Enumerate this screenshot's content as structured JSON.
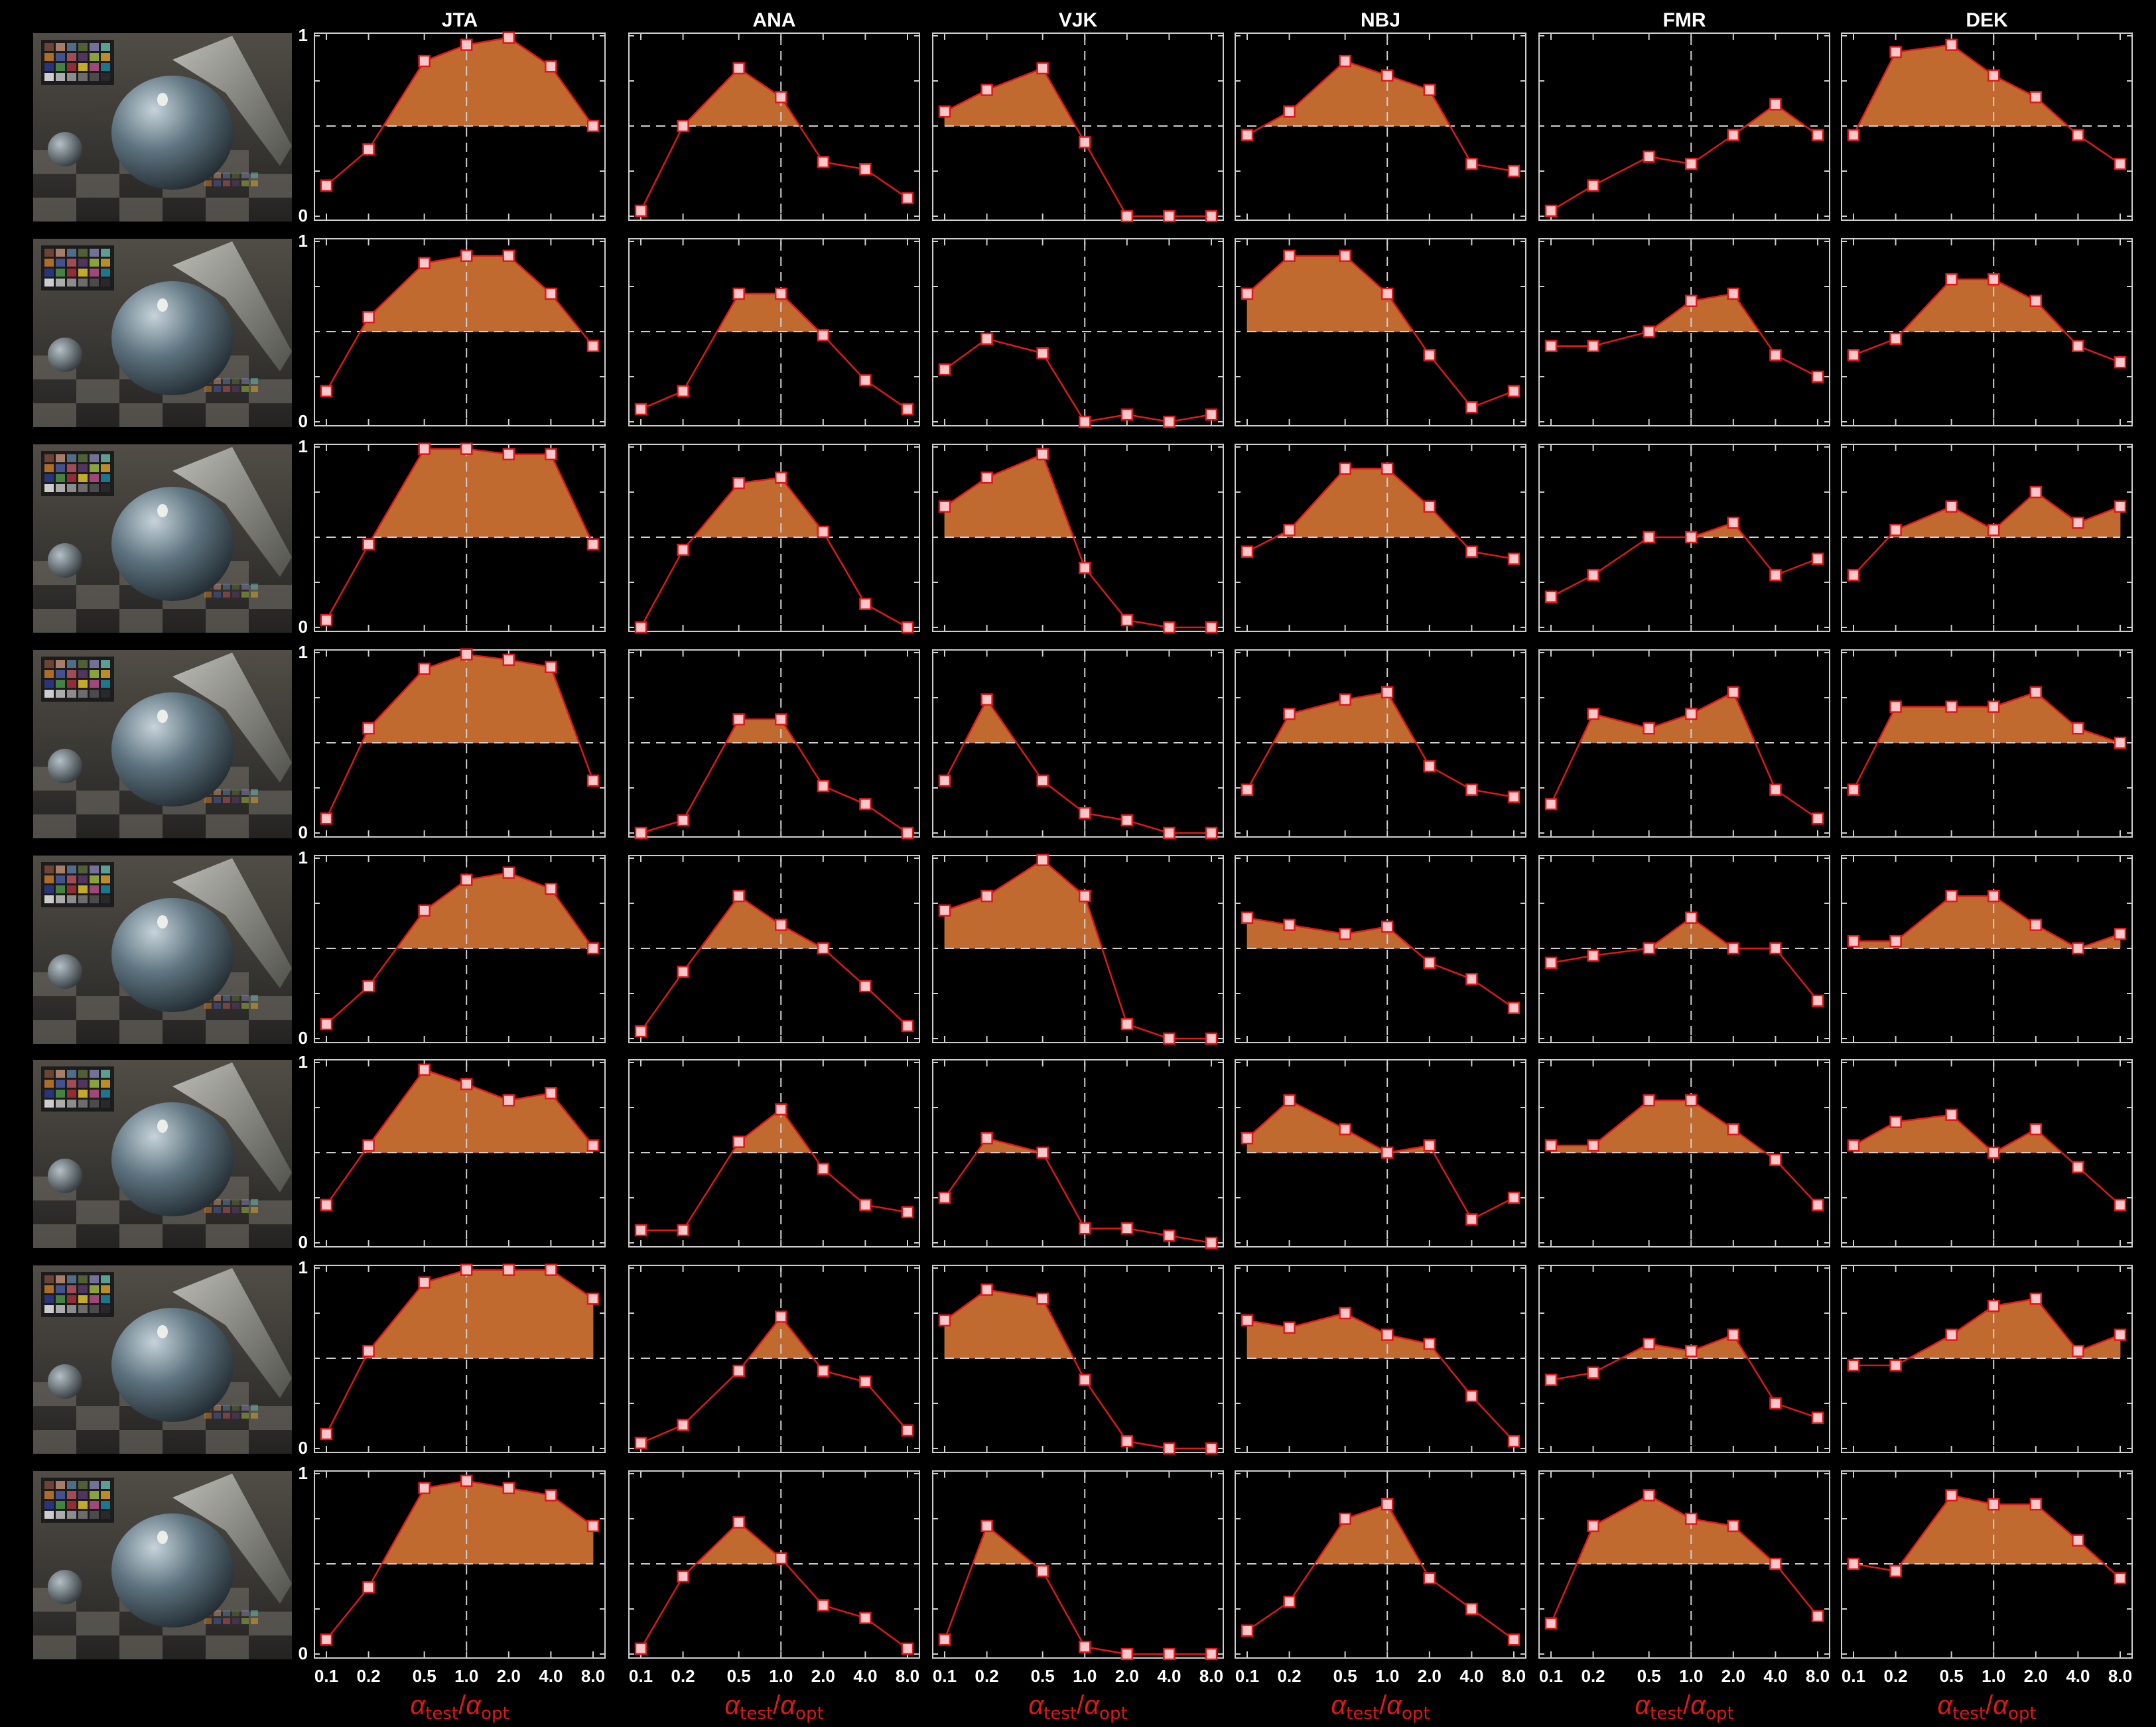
{
  "figure": {
    "colors": {
      "background": "#000000",
      "axes": "#cfcfcf",
      "fill": "#c06a30",
      "line": "#e01818",
      "marker_fill": "#f8c8cc",
      "marker_edge": "#e01818",
      "reference_lines": "#cfcfcf",
      "axis_label": "#e01818",
      "text": "#ffffff"
    },
    "observers": [
      "JTA",
      "ANA",
      "VJK",
      "NBJ",
      "FMR",
      "DEK"
    ],
    "x_ticks": [
      "0.1",
      "0.2",
      "0.5",
      "1.0",
      "2.0",
      "4.0",
      "8.0"
    ],
    "y_ticks": [
      "0",
      "1"
    ],
    "xlabel": {
      "main": "α",
      "sub_test": "test",
      "slash": "/",
      "main2": "α",
      "sub_opt": "opt"
    },
    "row_thumbnails": [
      "rendered-scene-thumbnail",
      "rendered-scene-thumbnail",
      "rendered-scene-thumbnail",
      "rendered-scene-thumbnail",
      "rendered-scene-thumbnail",
      "rendered-scene-thumbnail",
      "rendered-scene-thumbnail",
      "rendered-scene-thumbnail"
    ]
  },
  "chart_data": {
    "type": "line",
    "x": [
      0.1,
      0.2,
      0.5,
      1.0,
      2.0,
      4.0,
      8.0
    ],
    "x_scale": "log",
    "ylim": [
      0,
      1
    ],
    "reference_y": 0.5,
    "reference_x": 1.0,
    "fill": "area above 0.5",
    "grid": false,
    "panels": [
      {
        "row": 1,
        "observer": "JTA",
        "values": [
          0.17,
          0.37,
          0.86,
          0.95,
          0.99,
          0.83,
          0.5
        ]
      },
      {
        "row": 1,
        "observer": "ANA",
        "values": [
          0.03,
          0.5,
          0.82,
          0.66,
          0.3,
          0.26,
          0.1
        ]
      },
      {
        "row": 1,
        "observer": "VJK",
        "values": [
          0.58,
          0.7,
          0.82,
          0.41,
          0.0,
          0.0,
          0.0
        ]
      },
      {
        "row": 1,
        "observer": "NBJ",
        "values": [
          0.45,
          0.58,
          0.86,
          0.78,
          0.7,
          0.29,
          0.25
        ]
      },
      {
        "row": 1,
        "observer": "FMR",
        "values": [
          0.03,
          0.17,
          0.33,
          0.29,
          0.45,
          0.62,
          0.45
        ]
      },
      {
        "row": 1,
        "observer": "DEK",
        "values": [
          0.45,
          0.91,
          0.95,
          0.78,
          0.66,
          0.45,
          0.29
        ]
      },
      {
        "row": 2,
        "observer": "JTA",
        "values": [
          0.17,
          0.58,
          0.88,
          0.92,
          0.92,
          0.71,
          0.42
        ]
      },
      {
        "row": 2,
        "observer": "ANA",
        "values": [
          0.07,
          0.17,
          0.71,
          0.71,
          0.48,
          0.23,
          0.07
        ]
      },
      {
        "row": 2,
        "observer": "VJK",
        "values": [
          0.29,
          0.46,
          0.38,
          0.0,
          0.04,
          0.0,
          0.04
        ]
      },
      {
        "row": 2,
        "observer": "NBJ",
        "values": [
          0.71,
          0.92,
          0.92,
          0.71,
          0.37,
          0.08,
          0.17
        ]
      },
      {
        "row": 2,
        "observer": "FMR",
        "values": [
          0.42,
          0.42,
          0.5,
          0.67,
          0.71,
          0.37,
          0.25
        ]
      },
      {
        "row": 2,
        "observer": "DEK",
        "values": [
          0.37,
          0.46,
          0.79,
          0.79,
          0.67,
          0.42,
          0.33
        ]
      },
      {
        "row": 3,
        "observer": "JTA",
        "values": [
          0.04,
          0.46,
          0.99,
          0.99,
          0.96,
          0.96,
          0.46
        ]
      },
      {
        "row": 3,
        "observer": "ANA",
        "values": [
          0.0,
          0.43,
          0.8,
          0.83,
          0.53,
          0.13,
          0.0
        ]
      },
      {
        "row": 3,
        "observer": "VJK",
        "values": [
          0.67,
          0.83,
          0.96,
          0.33,
          0.04,
          0.0,
          0.0
        ]
      },
      {
        "row": 3,
        "observer": "NBJ",
        "values": [
          0.42,
          0.54,
          0.88,
          0.88,
          0.67,
          0.42,
          0.38
        ]
      },
      {
        "row": 3,
        "observer": "FMR",
        "values": [
          0.17,
          0.29,
          0.5,
          0.5,
          0.58,
          0.29,
          0.38
        ]
      },
      {
        "row": 3,
        "observer": "DEK",
        "values": [
          0.29,
          0.54,
          0.67,
          0.54,
          0.75,
          0.58,
          0.67
        ]
      },
      {
        "row": 4,
        "observer": "JTA",
        "values": [
          0.08,
          0.58,
          0.91,
          0.99,
          0.96,
          0.92,
          0.29
        ]
      },
      {
        "row": 4,
        "observer": "ANA",
        "values": [
          0.0,
          0.07,
          0.63,
          0.63,
          0.26,
          0.16,
          0.0
        ]
      },
      {
        "row": 4,
        "observer": "VJK",
        "values": [
          0.29,
          0.74,
          0.29,
          0.11,
          0.07,
          0.0,
          0.0
        ]
      },
      {
        "row": 4,
        "observer": "NBJ",
        "values": [
          0.24,
          0.66,
          0.74,
          0.78,
          0.37,
          0.24,
          0.2
        ]
      },
      {
        "row": 4,
        "observer": "FMR",
        "values": [
          0.16,
          0.66,
          0.58,
          0.66,
          0.78,
          0.24,
          0.08
        ]
      },
      {
        "row": 4,
        "observer": "DEK",
        "values": [
          0.24,
          0.7,
          0.7,
          0.7,
          0.78,
          0.58,
          0.5
        ]
      },
      {
        "row": 5,
        "observer": "JTA",
        "values": [
          0.08,
          0.29,
          0.71,
          0.88,
          0.92,
          0.83,
          0.5
        ]
      },
      {
        "row": 5,
        "observer": "ANA",
        "values": [
          0.04,
          0.37,
          0.79,
          0.63,
          0.5,
          0.29,
          0.07
        ]
      },
      {
        "row": 5,
        "observer": "VJK",
        "values": [
          0.71,
          0.79,
          0.99,
          0.79,
          0.08,
          0.0,
          0.0
        ]
      },
      {
        "row": 5,
        "observer": "NBJ",
        "values": [
          0.67,
          0.63,
          0.58,
          0.62,
          0.42,
          0.33,
          0.17
        ]
      },
      {
        "row": 5,
        "observer": "FMR",
        "values": [
          0.42,
          0.46,
          0.5,
          0.67,
          0.5,
          0.5,
          0.21
        ]
      },
      {
        "row": 5,
        "observer": "DEK",
        "values": [
          0.54,
          0.54,
          0.79,
          0.79,
          0.63,
          0.5,
          0.58
        ]
      },
      {
        "row": 6,
        "observer": "JTA",
        "values": [
          0.21,
          0.54,
          0.96,
          0.88,
          0.79,
          0.83,
          0.54
        ]
      },
      {
        "row": 6,
        "observer": "ANA",
        "values": [
          0.07,
          0.07,
          0.56,
          0.74,
          0.41,
          0.21,
          0.17
        ]
      },
      {
        "row": 6,
        "observer": "VJK",
        "values": [
          0.25,
          0.58,
          0.5,
          0.08,
          0.08,
          0.04,
          0.0
        ]
      },
      {
        "row": 6,
        "observer": "NBJ",
        "values": [
          0.58,
          0.79,
          0.63,
          0.5,
          0.54,
          0.13,
          0.25
        ]
      },
      {
        "row": 6,
        "observer": "FMR",
        "values": [
          0.54,
          0.54,
          0.79,
          0.79,
          0.63,
          0.46,
          0.21
        ]
      },
      {
        "row": 6,
        "observer": "DEK",
        "values": [
          0.54,
          0.67,
          0.71,
          0.5,
          0.63,
          0.42,
          0.21
        ]
      },
      {
        "row": 7,
        "observer": "JTA",
        "values": [
          0.08,
          0.54,
          0.92,
          0.99,
          0.99,
          0.99,
          0.83
        ]
      },
      {
        "row": 7,
        "observer": "ANA",
        "values": [
          0.03,
          0.13,
          0.43,
          0.73,
          0.43,
          0.37,
          0.1
        ]
      },
      {
        "row": 7,
        "observer": "VJK",
        "values": [
          0.71,
          0.88,
          0.83,
          0.38,
          0.04,
          0.0,
          0.0
        ]
      },
      {
        "row": 7,
        "observer": "NBJ",
        "values": [
          0.71,
          0.67,
          0.75,
          0.63,
          0.58,
          0.29,
          0.04
        ]
      },
      {
        "row": 7,
        "observer": "FMR",
        "values": [
          0.38,
          0.42,
          0.58,
          0.54,
          0.63,
          0.25,
          0.17
        ]
      },
      {
        "row": 7,
        "observer": "DEK",
        "values": [
          0.46,
          0.46,
          0.63,
          0.79,
          0.83,
          0.54,
          0.63
        ]
      },
      {
        "row": 8,
        "observer": "JTA",
        "values": [
          0.08,
          0.37,
          0.92,
          0.96,
          0.92,
          0.88,
          0.71
        ]
      },
      {
        "row": 8,
        "observer": "ANA",
        "values": [
          0.03,
          0.43,
          0.73,
          0.53,
          0.27,
          0.2,
          0.03
        ]
      },
      {
        "row": 8,
        "observer": "VJK",
        "values": [
          0.08,
          0.71,
          0.46,
          0.04,
          0.0,
          0.0,
          0.0
        ]
      },
      {
        "row": 8,
        "observer": "NBJ",
        "values": [
          0.13,
          0.29,
          0.75,
          0.83,
          0.42,
          0.25,
          0.08
        ]
      },
      {
        "row": 8,
        "observer": "FMR",
        "values": [
          0.17,
          0.71,
          0.88,
          0.75,
          0.71,
          0.5,
          0.21
        ]
      },
      {
        "row": 8,
        "observer": "DEK",
        "values": [
          0.5,
          0.46,
          0.88,
          0.83,
          0.83,
          0.63,
          0.42
        ]
      }
    ]
  }
}
